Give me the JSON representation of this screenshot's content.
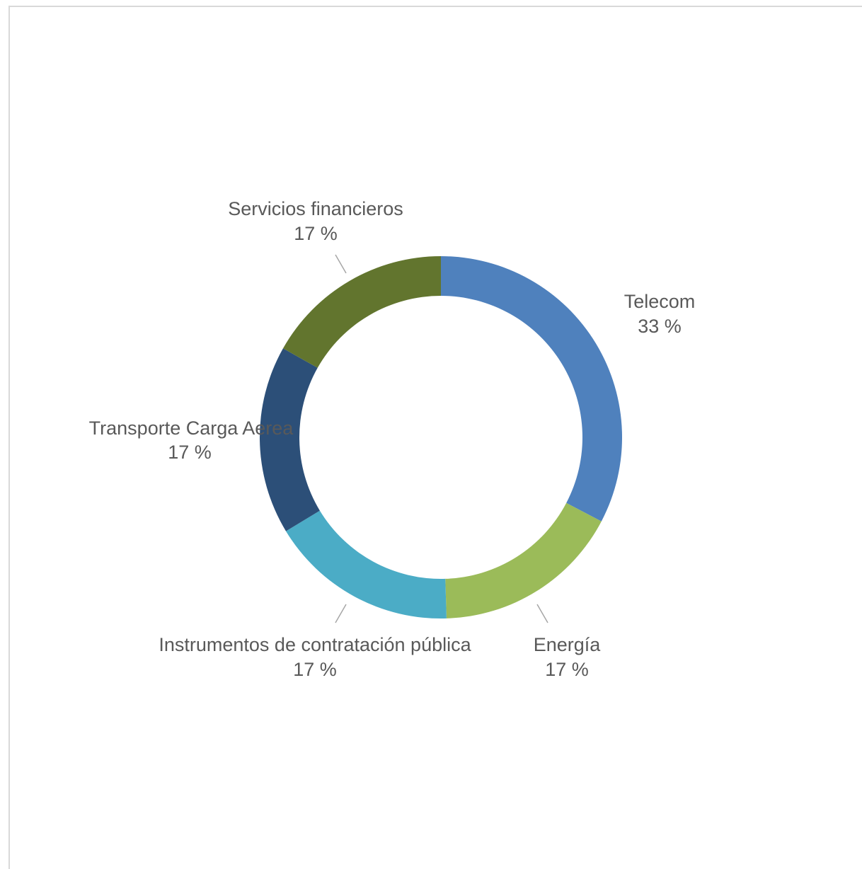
{
  "chart_data": {
    "type": "pie",
    "title": "",
    "slices": [
      {
        "label": "Telecom",
        "value": 33,
        "display": "33 %",
        "color": "#4f81bd"
      },
      {
        "label": "Energía",
        "value": 17,
        "display": "17 %",
        "color": "#9bbb59"
      },
      {
        "label": "Instrumentos de contratación pública",
        "value": 17,
        "display": "17 %",
        "color": "#4bacc6"
      },
      {
        "label": "Transporte Carga Aerea",
        "value": 17,
        "display": "17 %",
        "color": "#2c4f78"
      },
      {
        "label": "Servicios financieros",
        "value": 17,
        "display": "17 %",
        "color": "#62752e"
      }
    ],
    "legend": "none",
    "leader_line_color": "#a6a6a6"
  }
}
